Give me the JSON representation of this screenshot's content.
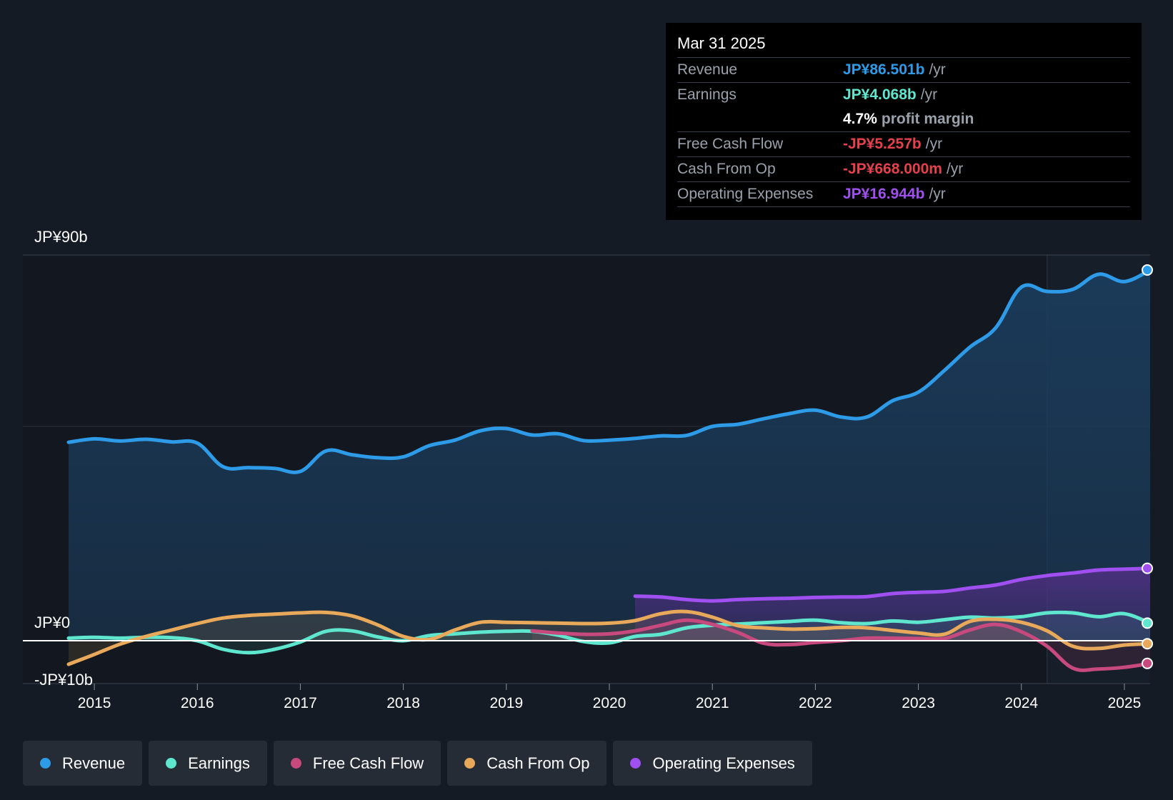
{
  "tooltip": {
    "date": "Mar 31 2025",
    "rows": [
      {
        "label": "Revenue",
        "value": "JP¥86.501b",
        "unit": "/yr",
        "color": "#2e9be8"
      },
      {
        "label": "Earnings",
        "value": "JP¥4.068b",
        "unit": "/yr",
        "color": "#5ee6cf"
      },
      {
        "label": "",
        "value": "4.7%",
        "unit": "profit margin",
        "color": "#ffffff"
      },
      {
        "label": "Free Cash Flow",
        "value": "-JP¥5.257b",
        "unit": "/yr",
        "color": "#e5414d"
      },
      {
        "label": "Cash From Op",
        "value": "-JP¥668.000m",
        "unit": "/yr",
        "color": "#e5414d"
      },
      {
        "label": "Operating Expenses",
        "value": "JP¥16.944b",
        "unit": "/yr",
        "color": "#a04ff0"
      }
    ]
  },
  "legend": [
    {
      "label": "Revenue",
      "color": "#2e9be8"
    },
    {
      "label": "Earnings",
      "color": "#5ee6cf"
    },
    {
      "label": "Free Cash Flow",
      "color": "#c8497d"
    },
    {
      "label": "Cash From Op",
      "color": "#e8a95a"
    },
    {
      "label": "Operating Expenses",
      "color": "#a04ff0"
    }
  ],
  "chart_data": {
    "type": "area",
    "title": "",
    "xlabel": "",
    "ylabel": "",
    "ylim": [
      -10,
      90
    ],
    "y_tick_labels": [
      {
        "value": 90,
        "label": "JP¥90b"
      },
      {
        "value": 0,
        "label": "JP¥0"
      },
      {
        "value": -10,
        "label": "-JP¥10b"
      }
    ],
    "xlim": [
      2014.75,
      2025.25
    ],
    "x_ticks": [
      2015,
      2016,
      2017,
      2018,
      2019,
      2020,
      2021,
      2022,
      2023,
      2024,
      2025
    ],
    "x_tick_labels": [
      "2015",
      "2016",
      "2017",
      "2018",
      "2019",
      "2020",
      "2021",
      "2022",
      "2023",
      "2024",
      "2025"
    ],
    "forecast_start": 2024.25,
    "series": [
      {
        "name": "Revenue",
        "color": "#2e9be8",
        "fill": true,
        "points": [
          [
            2014.75,
            46.3
          ],
          [
            2015.0,
            47.1
          ],
          [
            2015.25,
            46.6
          ],
          [
            2015.5,
            47.0
          ],
          [
            2015.75,
            46.4
          ],
          [
            2016.0,
            46.1
          ],
          [
            2016.25,
            40.6
          ],
          [
            2016.5,
            40.4
          ],
          [
            2016.75,
            40.2
          ],
          [
            2017.0,
            39.5
          ],
          [
            2017.25,
            44.3
          ],
          [
            2017.5,
            43.4
          ],
          [
            2017.75,
            42.7
          ],
          [
            2018.0,
            42.9
          ],
          [
            2018.25,
            45.5
          ],
          [
            2018.5,
            46.8
          ],
          [
            2018.75,
            49.0
          ],
          [
            2019.0,
            49.5
          ],
          [
            2019.25,
            48.0
          ],
          [
            2019.5,
            48.3
          ],
          [
            2019.75,
            46.7
          ],
          [
            2020.0,
            46.8
          ],
          [
            2020.25,
            47.2
          ],
          [
            2020.5,
            47.8
          ],
          [
            2020.75,
            47.9
          ],
          [
            2021.0,
            50.0
          ],
          [
            2021.25,
            50.5
          ],
          [
            2021.5,
            51.8
          ],
          [
            2021.75,
            53.0
          ],
          [
            2022.0,
            53.8
          ],
          [
            2022.25,
            52.2
          ],
          [
            2022.5,
            52.2
          ],
          [
            2022.75,
            56.0
          ],
          [
            2023.0,
            58.0
          ],
          [
            2023.25,
            63.0
          ],
          [
            2023.5,
            68.5
          ],
          [
            2023.75,
            73.0
          ],
          [
            2024.0,
            82.5
          ],
          [
            2024.25,
            81.5
          ],
          [
            2024.5,
            82.0
          ],
          [
            2024.75,
            85.5
          ],
          [
            2025.0,
            83.8
          ],
          [
            2025.25,
            86.5
          ]
        ]
      },
      {
        "name": "Operating Expenses",
        "color": "#a04ff0",
        "fill": true,
        "points": [
          [
            2020.25,
            10.4
          ],
          [
            2020.5,
            10.2
          ],
          [
            2020.75,
            9.6
          ],
          [
            2021.0,
            9.3
          ],
          [
            2021.25,
            9.6
          ],
          [
            2021.5,
            9.8
          ],
          [
            2021.75,
            9.9
          ],
          [
            2022.0,
            10.1
          ],
          [
            2022.25,
            10.2
          ],
          [
            2022.5,
            10.3
          ],
          [
            2022.75,
            11.0
          ],
          [
            2023.0,
            11.3
          ],
          [
            2023.25,
            11.5
          ],
          [
            2023.5,
            12.3
          ],
          [
            2023.75,
            13.0
          ],
          [
            2024.0,
            14.3
          ],
          [
            2024.25,
            15.2
          ],
          [
            2024.5,
            15.8
          ],
          [
            2024.75,
            16.5
          ],
          [
            2025.0,
            16.7
          ],
          [
            2025.25,
            16.9
          ]
        ]
      },
      {
        "name": "Earnings",
        "color": "#5ee6cf",
        "fill": true,
        "points": [
          [
            2014.75,
            0.6
          ],
          [
            2015.0,
            0.8
          ],
          [
            2015.25,
            0.6
          ],
          [
            2015.5,
            0.8
          ],
          [
            2015.75,
            0.7
          ],
          [
            2016.0,
            0.0
          ],
          [
            2016.25,
            -2.0
          ],
          [
            2016.5,
            -2.8
          ],
          [
            2016.75,
            -2.0
          ],
          [
            2017.0,
            -0.3
          ],
          [
            2017.25,
            2.2
          ],
          [
            2017.5,
            2.3
          ],
          [
            2017.75,
            0.9
          ],
          [
            2018.0,
            0.0
          ],
          [
            2018.25,
            1.2
          ],
          [
            2018.5,
            1.6
          ],
          [
            2018.75,
            2.0
          ],
          [
            2019.0,
            2.2
          ],
          [
            2019.25,
            2.2
          ],
          [
            2019.5,
            1.3
          ],
          [
            2019.75,
            -0.2
          ],
          [
            2020.0,
            -0.5
          ],
          [
            2020.25,
            1.0
          ],
          [
            2020.5,
            1.5
          ],
          [
            2020.75,
            3.0
          ],
          [
            2021.0,
            3.6
          ],
          [
            2021.25,
            3.9
          ],
          [
            2021.5,
            4.2
          ],
          [
            2021.75,
            4.5
          ],
          [
            2022.0,
            4.8
          ],
          [
            2022.25,
            4.2
          ],
          [
            2022.5,
            4.0
          ],
          [
            2022.75,
            4.6
          ],
          [
            2023.0,
            4.3
          ],
          [
            2023.25,
            4.9
          ],
          [
            2023.5,
            5.5
          ],
          [
            2023.75,
            5.3
          ],
          [
            2024.0,
            5.6
          ],
          [
            2024.25,
            6.5
          ],
          [
            2024.5,
            6.5
          ],
          [
            2024.75,
            5.6
          ],
          [
            2025.0,
            6.3
          ],
          [
            2025.25,
            4.1
          ]
        ]
      },
      {
        "name": "Free Cash Flow",
        "color": "#c8497d",
        "fill": true,
        "points": [
          [
            2019.25,
            2.3
          ],
          [
            2019.5,
            1.8
          ],
          [
            2019.75,
            1.5
          ],
          [
            2020.0,
            1.6
          ],
          [
            2020.25,
            2.3
          ],
          [
            2020.5,
            3.6
          ],
          [
            2020.75,
            4.8
          ],
          [
            2021.0,
            3.8
          ],
          [
            2021.25,
            1.9
          ],
          [
            2021.5,
            -0.6
          ],
          [
            2021.75,
            -0.9
          ],
          [
            2022.0,
            -0.4
          ],
          [
            2022.25,
            0.0
          ],
          [
            2022.5,
            0.6
          ],
          [
            2022.75,
            0.6
          ],
          [
            2023.0,
            0.5
          ],
          [
            2023.25,
            0.5
          ],
          [
            2023.5,
            2.5
          ],
          [
            2023.75,
            3.8
          ],
          [
            2024.0,
            2.1
          ],
          [
            2024.25,
            -1.3
          ],
          [
            2024.5,
            -6.4
          ],
          [
            2024.75,
            -6.6
          ],
          [
            2025.0,
            -6.2
          ],
          [
            2025.25,
            -5.3
          ]
        ]
      },
      {
        "name": "Cash From Op",
        "color": "#e8a95a",
        "fill": true,
        "points": [
          [
            2014.75,
            -5.5
          ],
          [
            2015.0,
            -3.2
          ],
          [
            2015.25,
            -0.8
          ],
          [
            2015.5,
            1.0
          ],
          [
            2015.75,
            2.5
          ],
          [
            2016.0,
            4.0
          ],
          [
            2016.25,
            5.3
          ],
          [
            2016.5,
            5.9
          ],
          [
            2016.75,
            6.2
          ],
          [
            2017.0,
            6.5
          ],
          [
            2017.25,
            6.6
          ],
          [
            2017.5,
            5.8
          ],
          [
            2017.75,
            3.7
          ],
          [
            2018.0,
            1.0
          ],
          [
            2018.25,
            0.3
          ],
          [
            2018.5,
            2.5
          ],
          [
            2018.75,
            4.3
          ],
          [
            2019.0,
            4.3
          ],
          [
            2019.25,
            4.2
          ],
          [
            2019.5,
            4.1
          ],
          [
            2019.75,
            4.0
          ],
          [
            2020.0,
            4.1
          ],
          [
            2020.25,
            4.7
          ],
          [
            2020.5,
            6.3
          ],
          [
            2020.75,
            6.8
          ],
          [
            2021.0,
            5.5
          ],
          [
            2021.25,
            3.5
          ],
          [
            2021.5,
            3.0
          ],
          [
            2021.75,
            2.7
          ],
          [
            2022.0,
            2.8
          ],
          [
            2022.25,
            3.1
          ],
          [
            2022.5,
            3.0
          ],
          [
            2022.75,
            2.4
          ],
          [
            2023.0,
            1.8
          ],
          [
            2023.25,
            1.5
          ],
          [
            2023.5,
            4.5
          ],
          [
            2023.75,
            5.0
          ],
          [
            2024.0,
            4.3
          ],
          [
            2024.25,
            2.3
          ],
          [
            2024.5,
            -1.3
          ],
          [
            2024.75,
            -1.8
          ],
          [
            2025.0,
            -1.0
          ],
          [
            2025.25,
            -0.7
          ]
        ]
      }
    ]
  }
}
